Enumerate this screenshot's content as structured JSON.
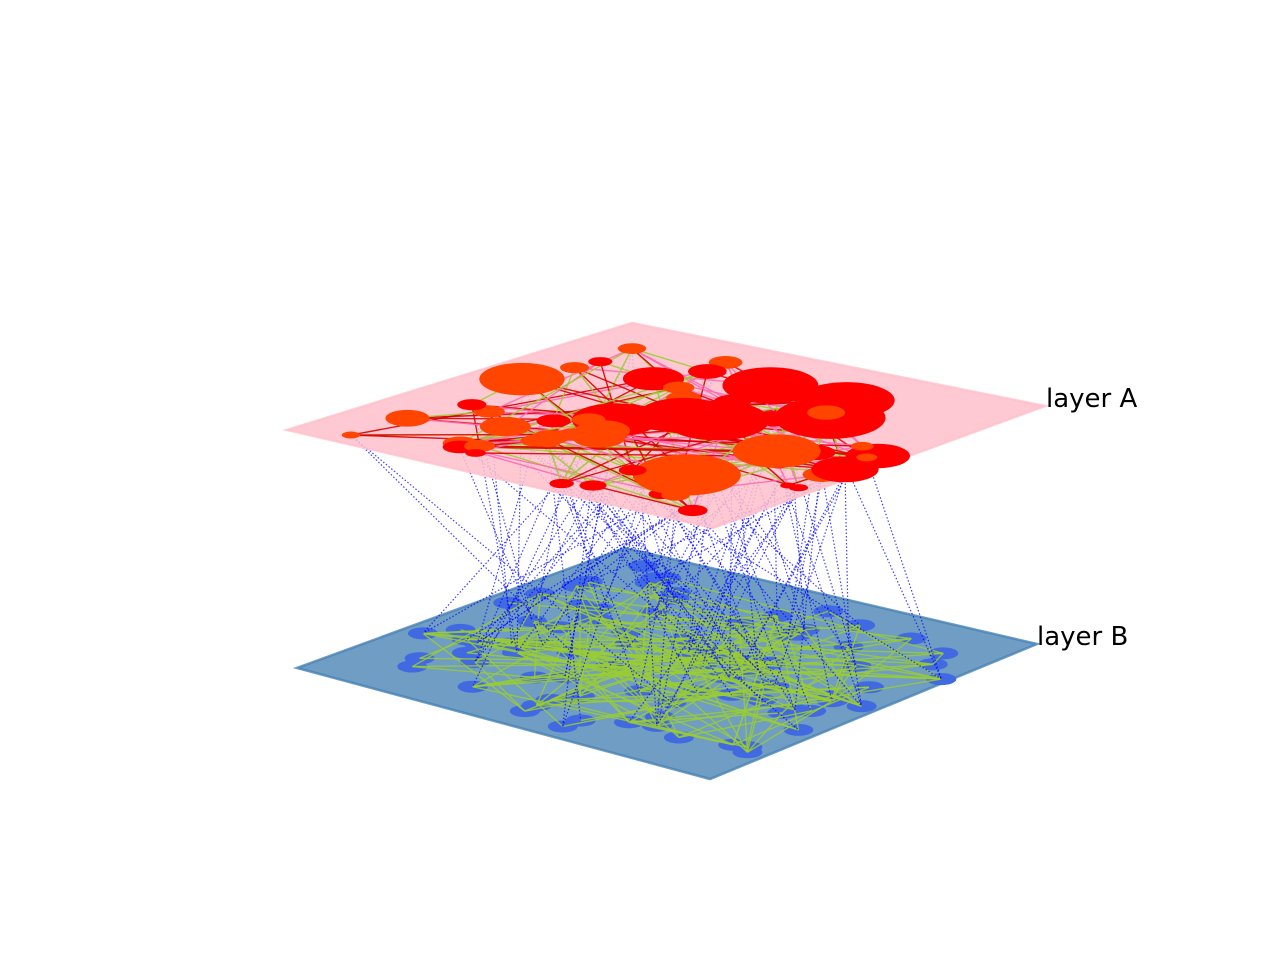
{
  "diagram": {
    "type": "multilayer-network",
    "layers": [
      {
        "id": "A",
        "label": "layer A",
        "plane_color": "#ffc0cb",
        "node_colors": [
          "#ff0000",
          "#ff4500"
        ],
        "edge_colors": [
          "#dd0000",
          "#ff69b4",
          "#9acd32"
        ]
      },
      {
        "id": "B",
        "label": "layer B",
        "plane_color": "#4682b4",
        "node_colors": [
          "#4169e1"
        ],
        "edge_colors": [
          "#9acd32"
        ]
      }
    ],
    "interlayer_edge_color": "#0000ff",
    "interlayer_edge_style": "dotted"
  }
}
